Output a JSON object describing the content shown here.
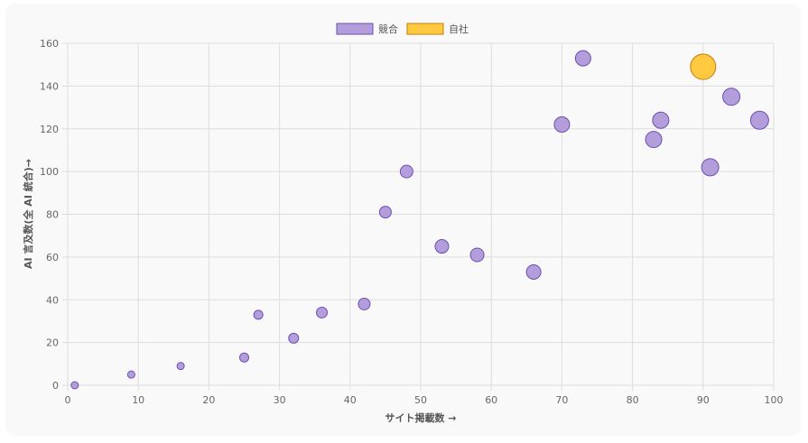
{
  "chart_data": {
    "type": "bubble",
    "title": "",
    "xlabel": "サイト掲載数 →",
    "ylabel": "AI 言及数(全 AI 統合)→",
    "xlim": [
      0,
      100
    ],
    "ylim": [
      0,
      160
    ],
    "xticks": [
      0,
      10,
      20,
      30,
      40,
      50,
      60,
      70,
      80,
      90,
      100
    ],
    "yticks": [
      0,
      20,
      40,
      60,
      80,
      100,
      120,
      140,
      160
    ],
    "grid": true,
    "legend_position": "top",
    "series": [
      {
        "name": "競合",
        "fill": "#b39ddb",
        "stroke": "#6a4fb3",
        "points": [
          {
            "x": 1,
            "y": 0,
            "r": 4
          },
          {
            "x": 9,
            "y": 5,
            "r": 4
          },
          {
            "x": 16,
            "y": 9,
            "r": 4
          },
          {
            "x": 25,
            "y": 13,
            "r": 5
          },
          {
            "x": 27,
            "y": 33,
            "r": 5
          },
          {
            "x": 32,
            "y": 22,
            "r": 5.5
          },
          {
            "x": 36,
            "y": 34,
            "r": 6
          },
          {
            "x": 42,
            "y": 38,
            "r": 6.5
          },
          {
            "x": 45,
            "y": 81,
            "r": 6.5
          },
          {
            "x": 48,
            "y": 100,
            "r": 7
          },
          {
            "x": 53,
            "y": 65,
            "r": 7.5
          },
          {
            "x": 58,
            "y": 61,
            "r": 7.5
          },
          {
            "x": 66,
            "y": 53,
            "r": 8
          },
          {
            "x": 70,
            "y": 122,
            "r": 8.5
          },
          {
            "x": 73,
            "y": 153,
            "r": 8.5
          },
          {
            "x": 83,
            "y": 115,
            "r": 9
          },
          {
            "x": 84,
            "y": 124,
            "r": 9
          },
          {
            "x": 91,
            "y": 102,
            "r": 9.5
          },
          {
            "x": 94,
            "y": 135,
            "r": 9.5
          },
          {
            "x": 98,
            "y": 124,
            "r": 10
          }
        ]
      },
      {
        "name": "自社",
        "fill": "#ffc940",
        "stroke": "#c77c0a",
        "points": [
          {
            "x": 90,
            "y": 149,
            "r": 14
          }
        ]
      }
    ]
  }
}
